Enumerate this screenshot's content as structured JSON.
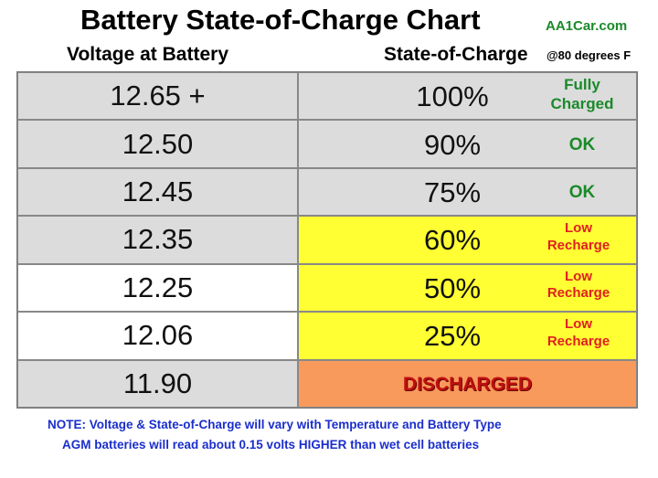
{
  "header": {
    "title": "Battery State-of-Charge Chart",
    "site": "AA1Car.com",
    "columns": [
      "Voltage at Battery",
      "State-of-Charge"
    ],
    "temperature": "@80 degrees F"
  },
  "table": {
    "rows": [
      {
        "voltage": "12.65 +",
        "soc": "100%",
        "status": "Fully Charged"
      },
      {
        "voltage": "12.50",
        "soc": "90%",
        "status": "OK"
      },
      {
        "voltage": "12.45",
        "soc": "75%",
        "status": "OK"
      },
      {
        "voltage": "12.35",
        "soc": "60%",
        "status": "Low Recharge"
      },
      {
        "voltage": "12.25",
        "soc": "50%",
        "status": "Low Recharge"
      },
      {
        "voltage": "12.06",
        "soc": "25%",
        "status": "Low Recharge"
      },
      {
        "voltage": "11.90",
        "status": "DISCHARGED"
      }
    ]
  },
  "notes": [
    "NOTE:  Voltage & State-of-Charge will vary with Temperature and Battery Type",
    "AGM batteries will read about 0.15 volts HIGHER than wet cell batteries"
  ]
}
